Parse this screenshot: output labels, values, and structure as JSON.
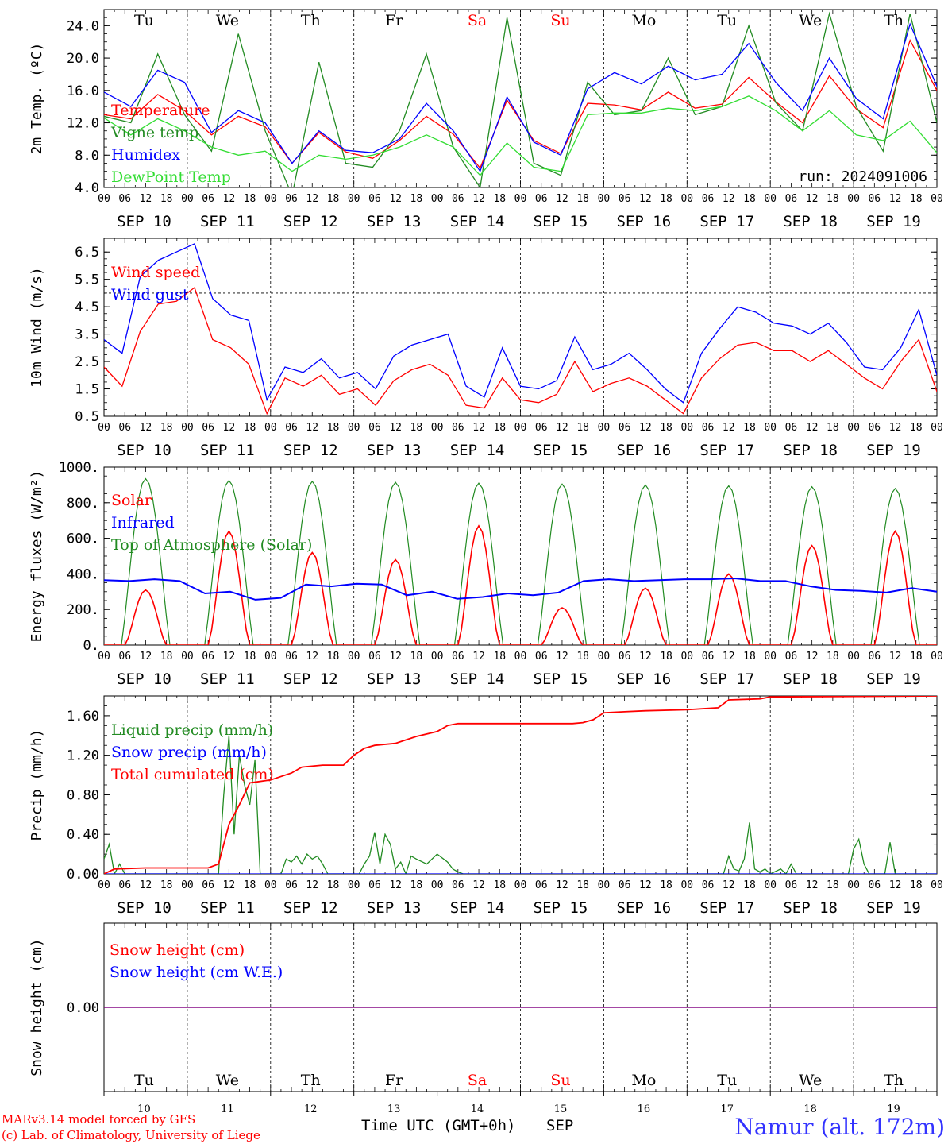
{
  "footer": {
    "credit_line1": "MARv3.14 model forced by GFS",
    "credit_line2": "(c) Lab. of Climatology, University of Liege",
    "xaxis_title": "Time UTC (GMT+0h)",
    "month_label": "SEP",
    "station": "Namur (alt. 172m)"
  },
  "days": [
    {
      "weekday": "Tu",
      "date": "SEP 10",
      "num": "10",
      "weekend": false
    },
    {
      "weekday": "We",
      "date": "SEP 11",
      "num": "11",
      "weekend": false
    },
    {
      "weekday": "Th",
      "date": "SEP 12",
      "num": "12",
      "weekend": false
    },
    {
      "weekday": "Fr",
      "date": "SEP 13",
      "num": "13",
      "weekend": false
    },
    {
      "weekday": "Sa",
      "date": "SEP 14",
      "num": "14",
      "weekend": true
    },
    {
      "weekday": "Su",
      "date": "SEP 15",
      "num": "15",
      "weekend": true
    },
    {
      "weekday": "Mo",
      "date": "SEP 16",
      "num": "16",
      "weekend": false
    },
    {
      "weekday": "Tu",
      "date": "SEP 17",
      "num": "17",
      "weekend": false
    },
    {
      "weekday": "We",
      "date": "SEP 18",
      "num": "18",
      "weekend": false
    },
    {
      "weekday": "Th",
      "date": "SEP 19",
      "num": "19",
      "weekend": false
    }
  ],
  "hour_ticks": [
    "00",
    "06",
    "12",
    "18"
  ],
  "colors": {
    "red": "#ff0000",
    "green": "#228b22",
    "blue": "#0000ff",
    "lightgreen": "#33dd33",
    "purple": "#800080",
    "weekend": "#ff0000",
    "station": "#3333ff"
  },
  "chart_data": [
    {
      "type": "line",
      "id": "temp",
      "ylabel": "2m Temp. (ºC)",
      "ylim": [
        4,
        26
      ],
      "yticks": [
        "4.0",
        "8.0",
        "12.0",
        "16.0",
        "20.0",
        "24.0"
      ],
      "yticks_num": [
        4,
        8,
        12,
        16,
        20,
        24
      ],
      "annotation": "run: 2024091006",
      "legend_placement": "top-left",
      "x_step_hours": 6,
      "series": [
        {
          "name": "Temperature",
          "color": "red",
          "values": [
            13,
            12.5,
            15.5,
            13.5,
            10.5,
            12.8,
            11.5,
            7,
            10.8,
            8.4,
            7.6,
            9.8,
            12.8,
            10.6,
            6.4,
            14.8,
            9.8,
            8.2,
            14.4,
            14.2,
            13.6,
            15.8,
            13.8,
            14.3,
            17.6,
            14.6,
            12,
            17.8,
            13.7,
            11.4,
            22.2,
            16
          ]
        },
        {
          "name": "Vigne temp",
          "color": "green",
          "values": [
            12.8,
            12,
            20.5,
            13,
            8.5,
            23,
            11,
            3,
            19.5,
            7,
            6.5,
            11,
            20.5,
            9,
            4,
            25,
            7,
            5.5,
            17,
            13,
            13.5,
            20,
            13,
            14,
            24,
            14.5,
            11,
            25.5,
            14,
            8.5,
            25.5,
            12
          ]
        },
        {
          "name": "Humidex",
          "color": "blue",
          "values": [
            15.8,
            14,
            18.5,
            17,
            10.8,
            13.5,
            12,
            7,
            11,
            8.6,
            8.3,
            10,
            14.4,
            11,
            6,
            15.2,
            9.6,
            8,
            16.2,
            18.2,
            16.8,
            19,
            17.3,
            18,
            21.8,
            17,
            13.5,
            20,
            15,
            12.5,
            24.2,
            16.5
          ]
        },
        {
          "name": "DewPoint Temp",
          "color": "lightgreen",
          "values": [
            12.6,
            10.5,
            12.5,
            11,
            9,
            8,
            8.5,
            6,
            8,
            7.5,
            8,
            9,
            10.5,
            9,
            5.5,
            9.5,
            6.5,
            6,
            13,
            13.2,
            13.2,
            13.8,
            13.5,
            14,
            15.3,
            13.5,
            11,
            13.5,
            10.5,
            9.8,
            12.2,
            8.3
          ]
        }
      ]
    },
    {
      "type": "line",
      "id": "wind",
      "ylabel": "10m Wind (m/s)",
      "ylim": [
        0.5,
        7
      ],
      "yticks": [
        "0.5",
        "1.5",
        "2.5",
        "3.5",
        "4.5",
        "5.5",
        "6.5"
      ],
      "yticks_num": [
        0.5,
        1.5,
        2.5,
        3.5,
        4.5,
        5.5,
        6.5
      ],
      "ref_line": 5,
      "legend_placement": "top-left",
      "x_step_hours": 6,
      "series": [
        {
          "name": "Wind speed",
          "color": "red",
          "values": [
            2.3,
            1.6,
            3.6,
            4.6,
            4.7,
            5.2,
            3.3,
            3.0,
            2.4,
            0.6,
            1.9,
            1.6,
            2.0,
            1.3,
            1.5,
            0.9,
            1.8,
            2.2,
            2.4,
            2.0,
            0.9,
            0.8,
            1.9,
            1.1,
            1.0,
            1.3,
            2.5,
            1.4,
            1.7,
            1.9,
            1.6,
            1.1,
            0.6,
            1.9,
            2.6,
            3.1,
            3.2,
            2.9,
            2.9,
            2.5,
            2.9,
            2.4,
            1.9,
            1.5,
            2.5,
            3.3,
            1.4
          ]
        },
        {
          "name": "Wind gust",
          "color": "blue",
          "values": [
            3.3,
            2.8,
            5.6,
            6.2,
            6.5,
            6.8,
            4.8,
            4.2,
            4.0,
            1.1,
            2.3,
            2.1,
            2.6,
            1.9,
            2.1,
            1.5,
            2.7,
            3.1,
            3.3,
            3.5,
            1.6,
            1.2,
            3.0,
            1.6,
            1.5,
            1.8,
            3.4,
            2.2,
            2.4,
            2.8,
            2.2,
            1.5,
            1.0,
            2.8,
            3.7,
            4.5,
            4.3,
            3.9,
            3.8,
            3.5,
            3.9,
            3.2,
            2.3,
            2.2,
            3.0,
            4.4,
            2.0
          ]
        }
      ]
    },
    {
      "type": "line",
      "id": "energy",
      "ylabel": "Energy fluxes (W/m²)",
      "ylim": [
        0,
        1000
      ],
      "yticks": [
        "0.",
        "200.",
        "400.",
        "600.",
        "800.",
        "1000."
      ],
      "yticks_num": [
        0,
        200,
        400,
        600,
        800,
        1000
      ],
      "legend_placement": "top-left",
      "solar_peaks": [
        310,
        640,
        520,
        480,
        670,
        210,
        320,
        400,
        560,
        640
      ],
      "toa_peaks": [
        935,
        925,
        920,
        915,
        910,
        905,
        900,
        895,
        890,
        880
      ],
      "infrared": [
        365,
        360,
        370,
        360,
        290,
        300,
        255,
        265,
        340,
        330,
        345,
        340,
        280,
        300,
        260,
        270,
        290,
        280,
        295,
        360,
        370,
        360,
        365,
        370,
        370,
        375,
        360,
        360,
        330,
        310,
        305,
        295,
        320,
        300
      ],
      "series": [
        {
          "name": "Solar",
          "color": "red"
        },
        {
          "name": "Infrared",
          "color": "blue"
        },
        {
          "name": "Top of Atmosphere (Solar)",
          "color": "green"
        }
      ]
    },
    {
      "type": "line",
      "id": "precip",
      "ylabel": "Precip (mm/h)",
      "ylim": [
        0,
        1.8
      ],
      "yticks": [
        "0.00",
        "0.40",
        "0.80",
        "1.20",
        "1.60"
      ],
      "yticks_num": [
        0,
        0.4,
        0.8,
        1.2,
        1.6
      ],
      "legend_placement": "top-left",
      "series": [
        {
          "name": "Liquid precip (mm/h)",
          "color": "green",
          "points": [
            [
              0,
              0.15
            ],
            [
              3,
              0.3
            ],
            [
              6,
              0
            ],
            [
              9,
              0.1
            ],
            [
              12,
              0
            ],
            [
              66,
              0
            ],
            [
              69,
              0.8
            ],
            [
              72,
              1.4
            ],
            [
              75,
              0.4
            ],
            [
              78,
              1.2
            ],
            [
              81,
              0.9
            ],
            [
              84,
              0.7
            ],
            [
              87,
              1.15
            ],
            [
              90,
              0
            ],
            [
              102,
              0
            ],
            [
              105,
              0.15
            ],
            [
              108,
              0.12
            ],
            [
              111,
              0.18
            ],
            [
              114,
              0.1
            ],
            [
              117,
              0.2
            ],
            [
              120,
              0.15
            ],
            [
              123,
              0.18
            ],
            [
              126,
              0.1
            ],
            [
              129,
              0
            ],
            [
              147,
              0
            ],
            [
              150,
              0.1
            ],
            [
              153,
              0.18
            ],
            [
              156,
              0.42
            ],
            [
              159,
              0.1
            ],
            [
              162,
              0.4
            ],
            [
              165,
              0.3
            ],
            [
              168,
              0.05
            ],
            [
              171,
              0.12
            ],
            [
              174,
              0
            ],
            [
              177,
              0.18
            ],
            [
              180,
              0.15
            ],
            [
              186,
              0.1
            ],
            [
              192,
              0.2
            ],
            [
              198,
              0.12
            ],
            [
              201,
              0.05
            ],
            [
              204,
              0.02
            ],
            [
              207,
              0
            ],
            [
              357,
              0
            ],
            [
              360,
              0.18
            ],
            [
              363,
              0.05
            ],
            [
              366,
              0.03
            ],
            [
              369,
              0.15
            ],
            [
              372,
              0.52
            ],
            [
              375,
              0.05
            ],
            [
              378,
              0.02
            ],
            [
              381,
              0.05
            ],
            [
              384,
              0
            ],
            [
              390,
              0.05
            ],
            [
              393,
              0
            ],
            [
              396,
              0.1
            ],
            [
              399,
              0
            ],
            [
              429,
              0
            ],
            [
              432,
              0.25
            ],
            [
              435,
              0.35
            ],
            [
              438,
              0.1
            ],
            [
              441,
              0
            ],
            [
              450,
              0
            ],
            [
              453,
              0.32
            ],
            [
              456,
              0
            ],
            [
              480,
              0
            ]
          ]
        },
        {
          "name": "Snow precip (mm/h)",
          "color": "blue",
          "points": [
            [
              0,
              0
            ],
            [
              480,
              0
            ]
          ]
        },
        {
          "name": "Total cumulated (cm)",
          "color": "red",
          "points": [
            [
              0,
              0
            ],
            [
              6,
              0.05
            ],
            [
              24,
              0.06
            ],
            [
              60,
              0.06
            ],
            [
              66,
              0.1
            ],
            [
              72,
              0.5
            ],
            [
              78,
              0.7
            ],
            [
              84,
              0.92
            ],
            [
              96,
              0.95
            ],
            [
              108,
              1.02
            ],
            [
              114,
              1.08
            ],
            [
              126,
              1.1
            ],
            [
              138,
              1.1
            ],
            [
              144,
              1.2
            ],
            [
              150,
              1.27
            ],
            [
              156,
              1.3
            ],
            [
              168,
              1.32
            ],
            [
              180,
              1.39
            ],
            [
              192,
              1.44
            ],
            [
              198,
              1.5
            ],
            [
              204,
              1.52
            ],
            [
              270,
              1.52
            ],
            [
              276,
              1.53
            ],
            [
              282,
              1.56
            ],
            [
              288,
              1.63
            ],
            [
              300,
              1.64
            ],
            [
              312,
              1.65
            ],
            [
              336,
              1.66
            ],
            [
              354,
              1.68
            ],
            [
              360,
              1.76
            ],
            [
              378,
              1.77
            ],
            [
              384,
              1.79
            ],
            [
              480,
              1.8
            ]
          ]
        }
      ]
    },
    {
      "type": "line",
      "id": "snow",
      "ylabel": "Snow height (cm)",
      "ylim": [
        -1,
        1
      ],
      "yticks": [
        "0.00"
      ],
      "yticks_num": [
        0
      ],
      "legend_placement": "top-left",
      "series": [
        {
          "name": "Snow height (cm)",
          "color": "red",
          "values": [
            0,
            0
          ]
        },
        {
          "name": "Snow height (cm W.E.)",
          "color": "blue",
          "values": [
            0,
            0
          ]
        }
      ]
    }
  ]
}
